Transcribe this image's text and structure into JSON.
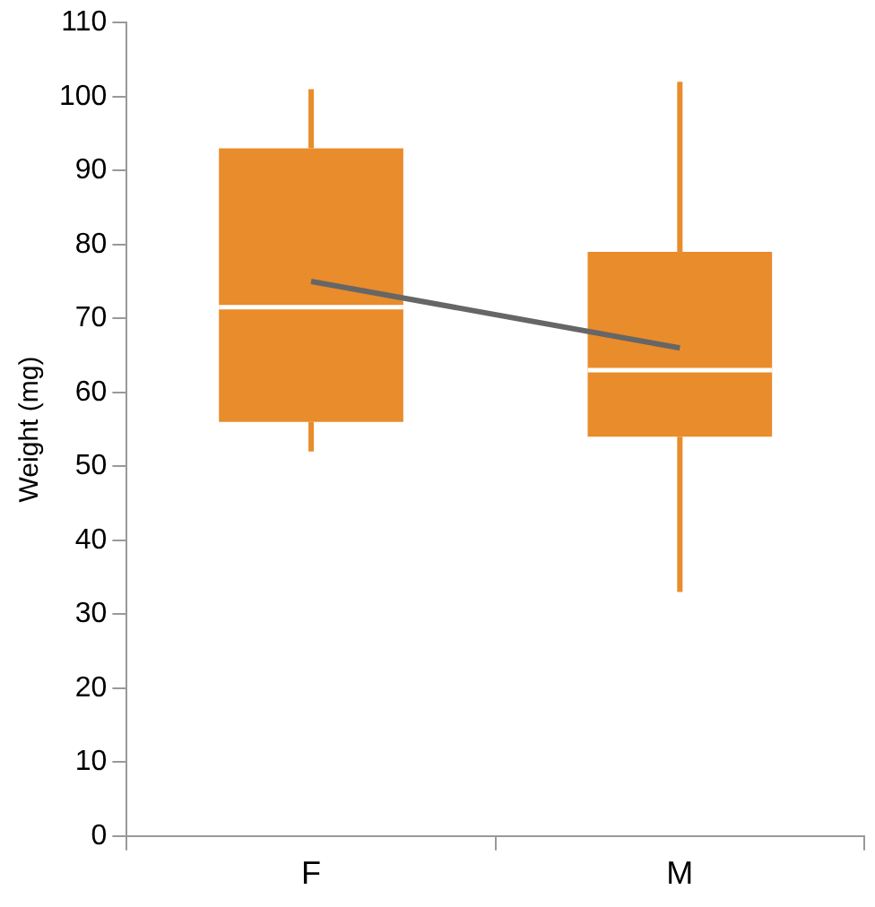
{
  "chart_data": {
    "type": "box",
    "ylabel": "Weight (mg)",
    "categories": [
      "F",
      "M"
    ],
    "color": "#e98c2c",
    "boxes": [
      {
        "low": 52,
        "q1": 56,
        "median": 71.5,
        "q3": 93,
        "high": 101
      },
      {
        "low": 33,
        "q1": 54,
        "median": 63,
        "q3": 79,
        "high": 102
      }
    ],
    "series": [
      {
        "type": "line",
        "color": "#666666",
        "values": [
          75,
          66
        ]
      }
    ],
    "ylim": [
      0,
      110
    ],
    "yticks": [
      0,
      10,
      20,
      30,
      40,
      50,
      60,
      70,
      80,
      90,
      100,
      110
    ],
    "grid": false,
    "legend": false
  }
}
